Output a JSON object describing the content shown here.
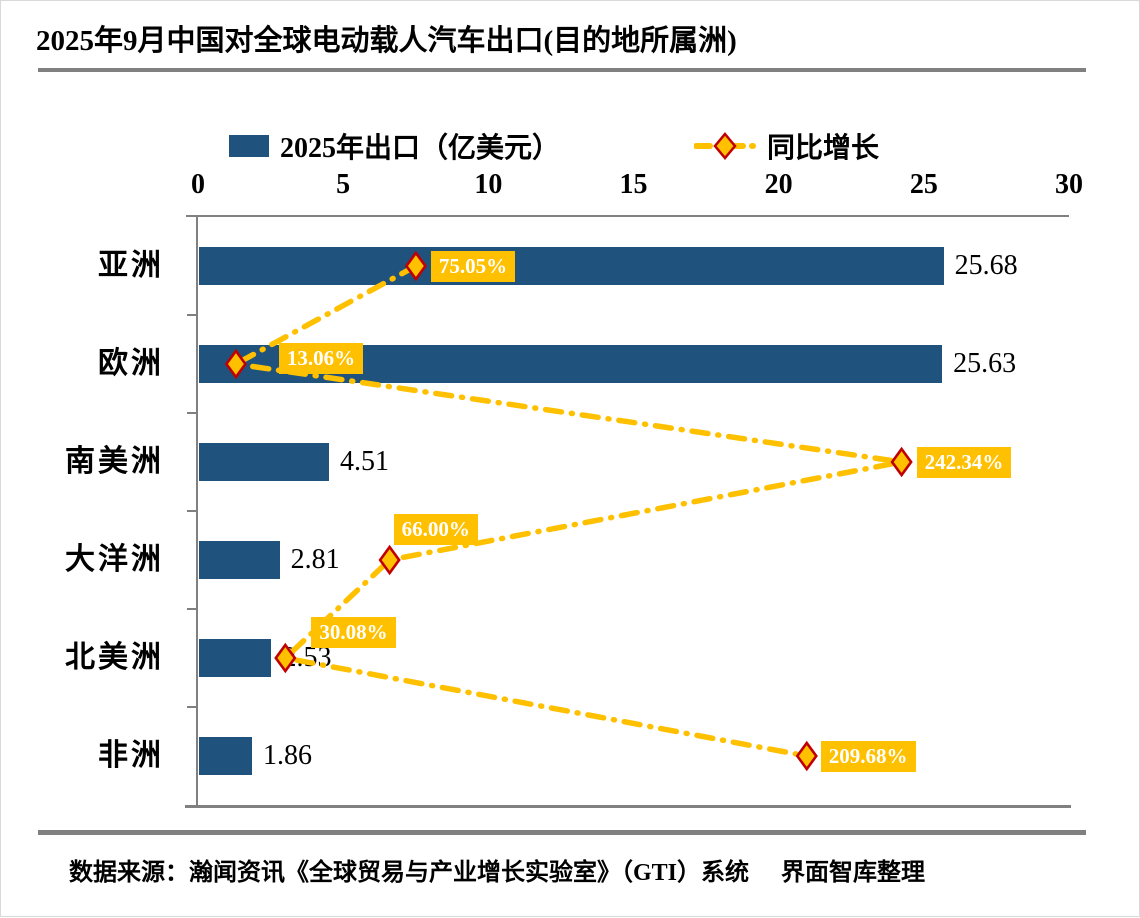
{
  "title": "2025年9月中国对全球电动载人汽车出口(目的地所属洲)",
  "source": {
    "prefix": "数据来源：瀚闻资讯《全球贸易与产业增长实验室》（GTI）系统",
    "suffix": "界面智库整理"
  },
  "colors": {
    "bar": "#20527E",
    "line": "#FFC000",
    "marker_fill": "#FFC000",
    "marker_border": "#C00000",
    "label_bg": "#FFC000",
    "label_text": "#FFFFFF",
    "separator": "#808080",
    "axis": "#808080"
  },
  "chart_data": {
    "type": "bar",
    "orientation": "horizontal",
    "title": "2025年9月中国对全球电动载人汽车出口(目的地所属洲)",
    "categories": [
      "亚洲",
      "欧洲",
      "南美洲",
      "大洋洲",
      "北美洲",
      "非洲"
    ],
    "series": [
      {
        "name": "2025年出口（亿美元）",
        "type": "bar",
        "values": [
          25.68,
          25.63,
          4.51,
          2.81,
          2.53,
          1.86
        ],
        "data_labels": [
          "25.68",
          "25.63",
          "4.51",
          "2.81",
          "2.53",
          "1.86"
        ]
      },
      {
        "name": "同比增长",
        "type": "line",
        "line_style": "dash-dot",
        "marker": "diamond",
        "values": [
          75.05,
          13.06,
          242.34,
          66.0,
          30.08,
          209.68
        ],
        "data_labels": [
          "75.05%",
          "13.06%",
          "242.34%",
          "66.00%",
          "30.08%",
          "209.68%"
        ]
      }
    ],
    "x_axis": {
      "min": 0,
      "max": 30,
      "tick_labels": [
        "0",
        "5",
        "10",
        "15",
        "20",
        "25",
        "30"
      ],
      "position": "top"
    },
    "secondary_x_axis": {
      "min": 0,
      "max": 300,
      "visible": false
    },
    "legend_position": "top",
    "grid": false
  }
}
